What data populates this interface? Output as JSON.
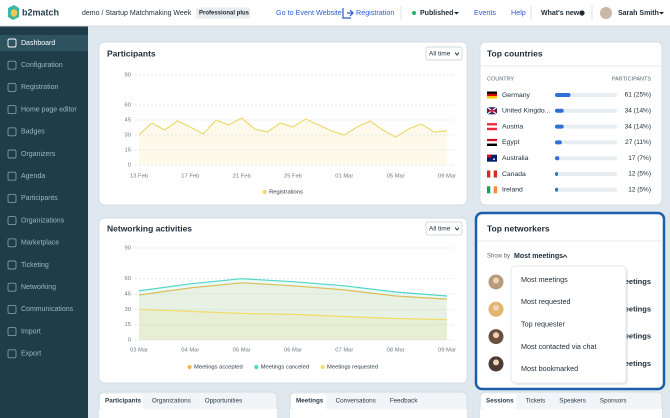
{
  "header": {
    "logo": "b2match",
    "event": "demo / Startup Matchmaking Week",
    "plan": "Professional plus",
    "website_link": "Go to Event Website",
    "registration_link": "Registration",
    "status": "Published",
    "events": "Events",
    "help": "Help",
    "whats_new": "What's new",
    "user": "Sarah Smith"
  },
  "sidebar": {
    "items": [
      "Dashboard",
      "Configuration",
      "Registration",
      "Home page editor",
      "Badges",
      "Organizers",
      "Agenda",
      "Participants",
      "Organizations",
      "Marketplace",
      "Ticketing",
      "Networking",
      "Communications",
      "Import",
      "Export"
    ],
    "active": 0
  },
  "filters": {
    "participants": "All time",
    "networking": "All time"
  },
  "top_networkers": {
    "title": "Top networkers",
    "show_by_label": "Show by",
    "selected": "Most meetings",
    "row_metric": "meetings",
    "rows": 4,
    "menu": [
      "Most meetings",
      "Most requested",
      "Top requester",
      "Most contacted via chat",
      "Most bookmarked"
    ]
  },
  "bottom_tabs": [
    {
      "tabs": [
        "Participants",
        "Organizations",
        "Opportunities"
      ],
      "active": 0
    },
    {
      "tabs": [
        "Meetings",
        "Conversations",
        "Feedback"
      ],
      "active": 0
    },
    {
      "tabs": [
        "Sessions",
        "Tickets",
        "Speakers",
        "Sponsors"
      ],
      "active": 0
    }
  ],
  "chart_data": [
    {
      "type": "line",
      "title": "Participants",
      "categories": [
        "13 Feb",
        null,
        null,
        null,
        "17 Feb",
        null,
        null,
        null,
        "21 Feb",
        null,
        null,
        null,
        "25 Feb",
        null,
        null,
        null,
        "01 Mar",
        null,
        null,
        null,
        "05 Mar",
        null,
        null,
        null,
        "09 Mar"
      ],
      "series": [
        {
          "name": "Registrations",
          "color": "#ecd96f",
          "values": [
            30,
            42,
            35,
            44,
            38,
            31,
            45,
            40,
            47,
            36,
            33,
            42,
            38,
            46,
            40,
            34,
            30,
            38,
            44,
            35,
            28,
            36,
            41,
            33,
            34
          ]
        }
      ],
      "ylim": [
        0,
        90
      ],
      "yticks": [
        0,
        15,
        30,
        45,
        60,
        90
      ],
      "grid": true
    },
    {
      "type": "line",
      "title": "Networking activities",
      "categories": [
        "03 Mar",
        "04 Mar",
        "05 Mar",
        "06 Mar",
        "07 Mar",
        "08 Mar",
        "09 Mar"
      ],
      "series": [
        {
          "name": "Meetings accepted",
          "color": "#f2b94a",
          "values": [
            44,
            51,
            56,
            53,
            49,
            43,
            40
          ]
        },
        {
          "name": "Meetings canceled",
          "color": "#52d6c8",
          "values": [
            48,
            55,
            60,
            57,
            53,
            47,
            43
          ]
        },
        {
          "name": "Meetings requested",
          "color": "#f0dc6a",
          "values": [
            30,
            28,
            26,
            25,
            23,
            21,
            20
          ]
        }
      ],
      "ylim": [
        0,
        90
      ],
      "yticks": [
        0,
        15,
        30,
        45,
        60,
        90
      ],
      "grid": true
    },
    {
      "type": "bar",
      "orientation": "horizontal",
      "title": "Top countries",
      "category_header": "COUNTRY",
      "value_header": "PARTICIPANTS",
      "categories": [
        "Germany",
        "United Kingdo...",
        "Austria",
        "Egypt",
        "Australia",
        "Canada",
        "Ireland"
      ],
      "values": [
        25,
        14,
        14,
        11,
        7,
        5,
        5
      ],
      "value_labels": [
        "61 (25%)",
        "34 (14%)",
        "34 (14%)",
        "27 (11%)",
        "17 (7%)",
        "12 (5%)",
        "12 (5%)"
      ],
      "color": "#2f6fd6",
      "xlim": [
        0,
        100
      ]
    }
  ]
}
